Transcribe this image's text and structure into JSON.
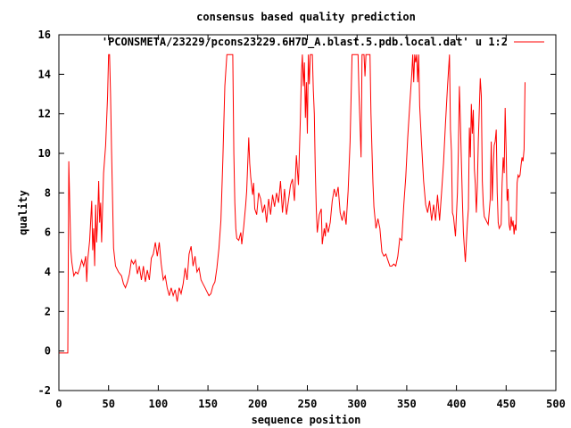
{
  "chart_data": {
    "type": "line",
    "title": "consensus based quality prediction",
    "xlabel": "sequence position",
    "ylabel": "quality",
    "xlim": [
      0,
      500
    ],
    "ylim": [
      -2,
      16
    ],
    "x_ticks": [
      "0",
      "50",
      "100",
      "150",
      "200",
      "250",
      "300",
      "350",
      "400",
      "450",
      "500"
    ],
    "y_ticks": [
      "-2",
      "0",
      "2",
      "4",
      "6",
      "8",
      "10",
      "12",
      "14",
      "16"
    ],
    "legend_position": "top-right",
    "grid": false,
    "series": [
      {
        "name": "'PCONSMETA/23229/pcons23229.6H7D_A.blast.5.pdb.local.dat' u 1:2",
        "color": "#ff0000",
        "points": [
          [
            0,
            -0.1
          ],
          [
            9,
            -0.1
          ],
          [
            10,
            9.6
          ],
          [
            11,
            7.2
          ],
          [
            12,
            5.1
          ],
          [
            13,
            4.5
          ],
          [
            15,
            3.8
          ],
          [
            17,
            4.0
          ],
          [
            19,
            3.9
          ],
          [
            21,
            4.2
          ],
          [
            23,
            4.6
          ],
          [
            25,
            4.3
          ],
          [
            27,
            4.8
          ],
          [
            28,
            3.5
          ],
          [
            29,
            4.6
          ],
          [
            31,
            5.6
          ],
          [
            33,
            7.6
          ],
          [
            34,
            5.1
          ],
          [
            35,
            6.2
          ],
          [
            36,
            4.3
          ],
          [
            37,
            7.4
          ],
          [
            38,
            5.5
          ],
          [
            39,
            6.6
          ],
          [
            40,
            8.6
          ],
          [
            41,
            6.5
          ],
          [
            42,
            7.5
          ],
          [
            43,
            5.5
          ],
          [
            45,
            9.0
          ],
          [
            47,
            10.4
          ],
          [
            49,
            12.9
          ],
          [
            50,
            15.0
          ],
          [
            51,
            15.0
          ],
          [
            52,
            13.0
          ],
          [
            53,
            10.2
          ],
          [
            54,
            7.6
          ],
          [
            55,
            5.2
          ],
          [
            57,
            4.3
          ],
          [
            60,
            4.0
          ],
          [
            63,
            3.8
          ],
          [
            65,
            3.4
          ],
          [
            67,
            3.2
          ],
          [
            69,
            3.5
          ],
          [
            71,
            3.9
          ],
          [
            73,
            4.6
          ],
          [
            75,
            4.4
          ],
          [
            77,
            4.6
          ],
          [
            79,
            3.9
          ],
          [
            81,
            4.3
          ],
          [
            83,
            3.6
          ],
          [
            85,
            4.3
          ],
          [
            87,
            3.5
          ],
          [
            89,
            4.1
          ],
          [
            91,
            3.6
          ],
          [
            93,
            4.7
          ],
          [
            95,
            4.9
          ],
          [
            97,
            5.5
          ],
          [
            99,
            4.8
          ],
          [
            101,
            5.5
          ],
          [
            103,
            4.4
          ],
          [
            105,
            3.6
          ],
          [
            107,
            3.8
          ],
          [
            109,
            3.2
          ],
          [
            111,
            2.8
          ],
          [
            113,
            3.2
          ],
          [
            115,
            2.8
          ],
          [
            117,
            3.1
          ],
          [
            119,
            2.5
          ],
          [
            121,
            3.2
          ],
          [
            123,
            2.9
          ],
          [
            125,
            3.4
          ],
          [
            127,
            4.2
          ],
          [
            129,
            3.6
          ],
          [
            131,
            4.9
          ],
          [
            133,
            5.3
          ],
          [
            135,
            4.3
          ],
          [
            137,
            4.8
          ],
          [
            139,
            4.0
          ],
          [
            141,
            4.2
          ],
          [
            143,
            3.6
          ],
          [
            145,
            3.4
          ],
          [
            147,
            3.2
          ],
          [
            149,
            3.0
          ],
          [
            151,
            2.8
          ],
          [
            153,
            2.9
          ],
          [
            155,
            3.3
          ],
          [
            157,
            3.5
          ],
          [
            159,
            4.2
          ],
          [
            161,
            5.2
          ],
          [
            163,
            6.6
          ],
          [
            165,
            9.7
          ],
          [
            167,
            13.4
          ],
          [
            169,
            15.0
          ],
          [
            171,
            15.0
          ],
          [
            173,
            15.0
          ],
          [
            175,
            15.0
          ],
          [
            176,
            10.0
          ],
          [
            177,
            7.5
          ],
          [
            178,
            6.2
          ],
          [
            179,
            5.7
          ],
          [
            181,
            5.6
          ],
          [
            183,
            6.0
          ],
          [
            184,
            5.4
          ],
          [
            186,
            6.3
          ],
          [
            188,
            7.4
          ],
          [
            189,
            8.1
          ],
          [
            191,
            10.8
          ],
          [
            192,
            9.5
          ],
          [
            193,
            8.8
          ],
          [
            195,
            7.9
          ],
          [
            196,
            8.5
          ],
          [
            197,
            7.2
          ],
          [
            199,
            6.9
          ],
          [
            201,
            8.0
          ],
          [
            203,
            7.7
          ],
          [
            205,
            7.0
          ],
          [
            207,
            7.4
          ],
          [
            209,
            6.5
          ],
          [
            211,
            7.7
          ],
          [
            213,
            6.9
          ],
          [
            215,
            7.9
          ],
          [
            217,
            7.3
          ],
          [
            219,
            8.0
          ],
          [
            221,
            7.5
          ],
          [
            223,
            8.6
          ],
          [
            225,
            7.0
          ],
          [
            227,
            8.2
          ],
          [
            229,
            6.9
          ],
          [
            231,
            7.6
          ],
          [
            233,
            8.4
          ],
          [
            235,
            8.7
          ],
          [
            237,
            7.6
          ],
          [
            239,
            9.9
          ],
          [
            241,
            8.4
          ],
          [
            243,
            11.8
          ],
          [
            244,
            14.0
          ],
          [
            245,
            15.0
          ],
          [
            246,
            13.4
          ],
          [
            247,
            14.6
          ],
          [
            248,
            11.8
          ],
          [
            249,
            13.6
          ],
          [
            250,
            11.0
          ],
          [
            251,
            15.0
          ],
          [
            252,
            13.5
          ],
          [
            253,
            15.0
          ],
          [
            255,
            15.0
          ],
          [
            256,
            13.2
          ],
          [
            257,
            12.0
          ],
          [
            258,
            9.1
          ],
          [
            259,
            7.2
          ],
          [
            260,
            6.0
          ],
          [
            262,
            6.9
          ],
          [
            264,
            7.2
          ],
          [
            265,
            5.4
          ],
          [
            267,
            6.2
          ],
          [
            268,
            5.8
          ],
          [
            269,
            6.5
          ],
          [
            271,
            6.0
          ],
          [
            273,
            6.5
          ],
          [
            275,
            7.6
          ],
          [
            277,
            8.2
          ],
          [
            279,
            7.8
          ],
          [
            281,
            8.3
          ],
          [
            283,
            7.0
          ],
          [
            285,
            6.6
          ],
          [
            287,
            7.1
          ],
          [
            289,
            6.4
          ],
          [
            291,
            8.1
          ],
          [
            293,
            10.6
          ],
          [
            295,
            15.0
          ],
          [
            297,
            15.0
          ],
          [
            299,
            15.0
          ],
          [
            301,
            15.0
          ],
          [
            302,
            13.0
          ],
          [
            303,
            11.5
          ],
          [
            304,
            9.8
          ],
          [
            305,
            15.0
          ],
          [
            306,
            15.0
          ],
          [
            307,
            15.0
          ],
          [
            308,
            13.9
          ],
          [
            309,
            15.0
          ],
          [
            311,
            15.0
          ],
          [
            313,
            15.0
          ],
          [
            314,
            12.0
          ],
          [
            315,
            10.2
          ],
          [
            316,
            8.5
          ],
          [
            317,
            7.3
          ],
          [
            319,
            6.2
          ],
          [
            321,
            6.7
          ],
          [
            323,
            6.2
          ],
          [
            325,
            5.0
          ],
          [
            327,
            4.8
          ],
          [
            329,
            4.9
          ],
          [
            331,
            4.6
          ],
          [
            333,
            4.3
          ],
          [
            335,
            4.3
          ],
          [
            337,
            4.4
          ],
          [
            339,
            4.3
          ],
          [
            341,
            4.8
          ],
          [
            343,
            5.7
          ],
          [
            345,
            5.6
          ],
          [
            347,
            7.4
          ],
          [
            349,
            8.8
          ],
          [
            351,
            10.8
          ],
          [
            353,
            12.4
          ],
          [
            355,
            14.0
          ],
          [
            356,
            15.0
          ],
          [
            357,
            13.6
          ],
          [
            358,
            15.0
          ],
          [
            359,
            14.6
          ],
          [
            360,
            15.0
          ],
          [
            361,
            13.6
          ],
          [
            362,
            15.0
          ],
          [
            363,
            12.4
          ],
          [
            365,
            10.4
          ],
          [
            367,
            8.6
          ],
          [
            369,
            7.4
          ],
          [
            371,
            7.0
          ],
          [
            373,
            7.6
          ],
          [
            375,
            6.6
          ],
          [
            377,
            7.4
          ],
          [
            379,
            6.6
          ],
          [
            381,
            7.9
          ],
          [
            383,
            6.6
          ],
          [
            385,
            8.0
          ],
          [
            387,
            9.5
          ],
          [
            389,
            11.5
          ],
          [
            391,
            13.4
          ],
          [
            393,
            15.0
          ],
          [
            394,
            11.2
          ],
          [
            395,
            10.1
          ],
          [
            396,
            7.0
          ],
          [
            397,
            6.8
          ],
          [
            399,
            5.8
          ],
          [
            401,
            8.0
          ],
          [
            402,
            10.2
          ],
          [
            403,
            13.4
          ],
          [
            404,
            11.5
          ],
          [
            405,
            9.5
          ],
          [
            406,
            7.6
          ],
          [
            407,
            6.0
          ],
          [
            408,
            5.2
          ],
          [
            409,
            4.5
          ],
          [
            410,
            5.5
          ],
          [
            411,
            6.5
          ],
          [
            412,
            7.2
          ],
          [
            413,
            11.3
          ],
          [
            414,
            9.8
          ],
          [
            415,
            12.5
          ],
          [
            416,
            11.0
          ],
          [
            417,
            12.2
          ],
          [
            418,
            9.2
          ],
          [
            419,
            8.4
          ],
          [
            420,
            7.0
          ],
          [
            421,
            8.3
          ],
          [
            422,
            10.6
          ],
          [
            424,
            13.8
          ],
          [
            425,
            12.9
          ],
          [
            426,
            8.6
          ],
          [
            427,
            7.4
          ],
          [
            428,
            6.8
          ],
          [
            430,
            6.6
          ],
          [
            432,
            6.4
          ],
          [
            434,
            7.7
          ],
          [
            435,
            10.6
          ],
          [
            436,
            7.6
          ],
          [
            437,
            9.2
          ],
          [
            438,
            10.4
          ],
          [
            439,
            10.6
          ],
          [
            440,
            11.2
          ],
          [
            441,
            8.0
          ],
          [
            442,
            6.5
          ],
          [
            443,
            6.2
          ],
          [
            445,
            6.4
          ],
          [
            446,
            8.5
          ],
          [
            447,
            9.8
          ],
          [
            448,
            9.0
          ],
          [
            449,
            12.3
          ],
          [
            450,
            10.2
          ],
          [
            451,
            7.6
          ],
          [
            452,
            8.2
          ],
          [
            453,
            6.4
          ],
          [
            454,
            6.1
          ],
          [
            455,
            6.8
          ],
          [
            456,
            6.3
          ],
          [
            457,
            6.6
          ],
          [
            458,
            5.9
          ],
          [
            459,
            6.4
          ],
          [
            460,
            6.1
          ],
          [
            461,
            8.5
          ],
          [
            462,
            8.9
          ],
          [
            463,
            8.8
          ],
          [
            464,
            8.9
          ],
          [
            465,
            9.4
          ],
          [
            466,
            9.8
          ],
          [
            467,
            9.6
          ],
          [
            468,
            10.2
          ],
          [
            469,
            13.6
          ]
        ]
      }
    ]
  }
}
